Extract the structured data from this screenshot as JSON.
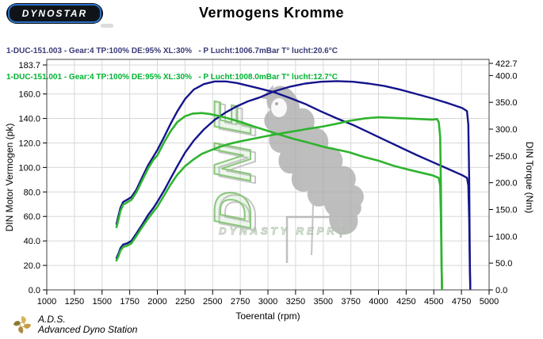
{
  "header": {
    "logo_text": "DYNOSTAR",
    "title": "Vermogens Kromme"
  },
  "legend": {
    "run1": {
      "label": "1-DUC-151.003 - Gear:4 TP:100% DE:95% XL:30%   - P Lucht:1006.7mBar T° lucht:20.6°C",
      "color": "#3a3a78"
    },
    "run2": {
      "label": "1-DUC-151.001 - Gear:4 TP:100% DE:95% XL:30%   - P Lucht:1008.0mBar T° lucht:12.7°C",
      "color": "#00b432"
    }
  },
  "watermark": {
    "vertical_text": "DNF",
    "subtitle": "DYNASTY REPRO",
    "green": "#64b450",
    "gray": "#ababab"
  },
  "footer": {
    "abbr": "A.D.S.",
    "name": "Advanced Dyno Station"
  },
  "chart_data": {
    "type": "line",
    "title": "Vermogens Kromme",
    "xlabel": "Toerental (rpm)",
    "ylabel_left": "DIN Motor Vermogen (pk)",
    "ylabel_right": "DIN Torque (Nm)",
    "grid": true,
    "xlim": [
      1000,
      5000
    ],
    "ylim_left": [
      0,
      183.7
    ],
    "ylim_right": [
      0,
      422.7
    ],
    "x_ticks": [
      1000,
      1250,
      1500,
      1750,
      2000,
      2250,
      2500,
      2750,
      3000,
      3250,
      3500,
      3750,
      4000,
      4250,
      4500,
      4750,
      5000
    ],
    "left_ticks": [
      0,
      20,
      40,
      60,
      80,
      100,
      120,
      140,
      160,
      183.7
    ],
    "right_ticks": [
      0,
      50,
      100,
      150,
      200,
      250,
      300,
      350,
      400,
      422.7
    ],
    "series": [
      {
        "name": "1-DUC-151.003 torque (Nm)",
        "axis": "right",
        "color": "#14148c",
        "width": 2.4,
        "points": [
          [
            1631,
            123
          ],
          [
            1650,
            140
          ],
          [
            1666,
            153
          ],
          [
            1690,
            164
          ],
          [
            1725,
            168
          ],
          [
            1765,
            173
          ],
          [
            1810,
            187
          ],
          [
            1860,
            209
          ],
          [
            1915,
            232
          ],
          [
            1965,
            249
          ],
          [
            2000,
            261
          ],
          [
            2060,
            285
          ],
          [
            2120,
            310
          ],
          [
            2180,
            333
          ],
          [
            2250,
            356
          ],
          [
            2330,
            374
          ],
          [
            2420,
            384
          ],
          [
            2520,
            389
          ],
          [
            2620,
            389
          ],
          [
            2720,
            386
          ],
          [
            2820,
            381
          ],
          [
            2920,
            376
          ],
          [
            3052,
            369
          ],
          [
            3200,
            358
          ],
          [
            3337,
            347
          ],
          [
            3480,
            333
          ],
          [
            3624,
            320
          ],
          [
            3767,
            308
          ],
          [
            3911,
            294
          ],
          [
            4054,
            280
          ],
          [
            4197,
            266
          ],
          [
            4341,
            252
          ],
          [
            4484,
            239
          ],
          [
            4627,
            226
          ],
          [
            4757,
            214
          ],
          [
            4800,
            209
          ],
          [
            4812,
            195
          ],
          [
            4820,
            130
          ],
          [
            4826,
            40
          ],
          [
            4830,
            2
          ]
        ]
      },
      {
        "name": "1-DUC-151.003 power (pk)",
        "axis": "left",
        "color": "#14148c",
        "width": 2.4,
        "points": [
          [
            1631,
            26
          ],
          [
            1650,
            30
          ],
          [
            1666,
            34
          ],
          [
            1690,
            37
          ],
          [
            1725,
            38
          ],
          [
            1765,
            40
          ],
          [
            1810,
            46
          ],
          [
            1860,
            53
          ],
          [
            1915,
            61
          ],
          [
            1965,
            67
          ],
          [
            2000,
            72
          ],
          [
            2060,
            81
          ],
          [
            2120,
            91
          ],
          [
            2180,
            101
          ],
          [
            2250,
            112
          ],
          [
            2330,
            122
          ],
          [
            2420,
            131
          ],
          [
            2520,
            139
          ],
          [
            2620,
            145
          ],
          [
            2720,
            150
          ],
          [
            2820,
            154
          ],
          [
            2920,
            157
          ],
          [
            3052,
            162
          ],
          [
            3200,
            166
          ],
          [
            3337,
            168.5
          ],
          [
            3480,
            170
          ],
          [
            3624,
            170.5
          ],
          [
            3767,
            170
          ],
          [
            3911,
            168.5
          ],
          [
            4054,
            166.5
          ],
          [
            4197,
            163.5
          ],
          [
            4341,
            160
          ],
          [
            4484,
            156.5
          ],
          [
            4627,
            152.5
          ],
          [
            4757,
            148.5
          ],
          [
            4800,
            146
          ],
          [
            4812,
            135
          ],
          [
            4820,
            90
          ],
          [
            4826,
            25
          ],
          [
            4830,
            1
          ]
        ]
      },
      {
        "name": "1-DUC-151.001 torque (Nm)",
        "axis": "right",
        "color": "#2eb42e",
        "width": 2.6,
        "points": [
          [
            1631,
            117
          ],
          [
            1650,
            133
          ],
          [
            1666,
            147
          ],
          [
            1690,
            159
          ],
          [
            1725,
            163
          ],
          [
            1765,
            168
          ],
          [
            1810,
            182
          ],
          [
            1860,
            203
          ],
          [
            1915,
            226
          ],
          [
            1965,
            243
          ],
          [
            2000,
            251
          ],
          [
            2060,
            275
          ],
          [
            2120,
            296
          ],
          [
            2180,
            313
          ],
          [
            2250,
            324
          ],
          [
            2320,
            329
          ],
          [
            2400,
            330
          ],
          [
            2480,
            328
          ],
          [
            2570,
            324
          ],
          [
            2660,
            319
          ],
          [
            2760,
            313
          ],
          [
            2870,
            305
          ],
          [
            2980,
            298
          ],
          [
            3100,
            290
          ],
          [
            3230,
            282
          ],
          [
            3360,
            275
          ],
          [
            3500,
            267
          ],
          [
            3640,
            261
          ],
          [
            3731,
            257
          ],
          [
            3870,
            248
          ],
          [
            4000,
            241
          ],
          [
            4130,
            232
          ],
          [
            4260,
            225
          ],
          [
            4380,
            219
          ],
          [
            4484,
            214
          ],
          [
            4545,
            209
          ],
          [
            4558,
            195
          ],
          [
            4565,
            130
          ],
          [
            4570,
            50
          ],
          [
            4574,
            3
          ]
        ]
      },
      {
        "name": "1-DUC-151.001 power (pk)",
        "axis": "left",
        "color": "#2eb42e",
        "width": 2.6,
        "points": [
          [
            1631,
            24
          ],
          [
            1650,
            28
          ],
          [
            1666,
            32
          ],
          [
            1690,
            35
          ],
          [
            1725,
            36
          ],
          [
            1765,
            38
          ],
          [
            1810,
            44
          ],
          [
            1860,
            51
          ],
          [
            1915,
            58
          ],
          [
            1965,
            64
          ],
          [
            2000,
            68
          ],
          [
            2060,
            77
          ],
          [
            2120,
            86
          ],
          [
            2180,
            94
          ],
          [
            2250,
            101
          ],
          [
            2320,
            106
          ],
          [
            2400,
            111
          ],
          [
            2480,
            114
          ],
          [
            2570,
            117
          ],
          [
            2660,
            119.5
          ],
          [
            2760,
            121.5
          ],
          [
            2870,
            123.5
          ],
          [
            2980,
            125.5
          ],
          [
            3100,
            127.5
          ],
          [
            3230,
            129.5
          ],
          [
            3360,
            131.5
          ],
          [
            3500,
            133.5
          ],
          [
            3640,
            136
          ],
          [
            3731,
            138
          ],
          [
            3870,
            140
          ],
          [
            4000,
            141
          ],
          [
            4130,
            140.5
          ],
          [
            4260,
            140
          ],
          [
            4380,
            139.5
          ],
          [
            4484,
            139
          ],
          [
            4530,
            139.5
          ],
          [
            4545,
            137
          ],
          [
            4558,
            125
          ],
          [
            4565,
            80
          ],
          [
            4570,
            25
          ],
          [
            4574,
            1
          ]
        ]
      }
    ]
  }
}
